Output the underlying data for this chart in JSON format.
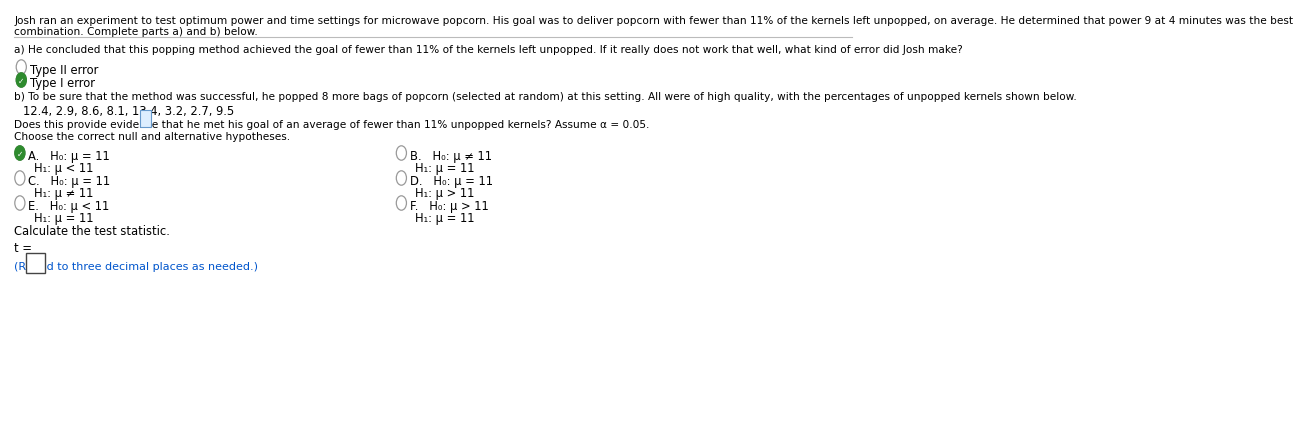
{
  "title_text": "Josh ran an experiment to test optimum power and time settings for microwave popcorn. His goal was to deliver popcorn with fewer than 11% of the kernels left unpopped, on average. He determined that power 9 at 4 minutes was the best",
  "title_text2": "combination. Complete parts a) and b) below.",
  "part_a_text": "a) He concluded that this popping method achieved the goal of fewer than 11% of the kernels left unpopped. If it really does not work that well, what kind of error did Josh make?",
  "option1": "Type II error",
  "option2": "Type I error",
  "part_b_text": "b) To be sure that the method was successful, he popped 8 more bags of popcorn (selected at random) at this setting. All were of high quality, with the percentages of unpopped kernels shown below.",
  "data_values": "12.4, 2.9, 8.6, 8.1, 13.4, 3.2, 2.7, 9.5",
  "question_text": "Does this provide evidence that he met his goal of an average of fewer than 11% unpopped kernels? Assume α = 0.05.",
  "choose_text": "Choose the correct null and alternative hypotheses.",
  "hyp_A_line1": "H₀: μ = 11",
  "hyp_A_line2": "H₁: μ < 11",
  "hyp_B_line1": "H₀: μ ≠ 11",
  "hyp_B_line2": "H₁: μ = 11",
  "hyp_C_line1": "H₀: μ = 11",
  "hyp_C_line2": "H₁: μ ≠ 11",
  "hyp_D_line1": "H₀: μ = 11",
  "hyp_D_line2": "H₁: μ > 11",
  "hyp_E_line1": "H₀: μ < 11",
  "hyp_E_line2": "H₁: μ = 11",
  "hyp_F_line1": "H₀: μ > 11",
  "hyp_F_line2": "H₁: μ = 11",
  "calc_text": "Calculate the test statistic.",
  "t_label": "t =",
  "round_text": "(Round to three decimal places as needed.)",
  "bg_color": "#ffffff",
  "text_color": "#000000",
  "blue_color": "#0055cc",
  "circle_color": "#999999",
  "checked_color": "#2e8b2e",
  "separator_color": "#bbbbbb"
}
